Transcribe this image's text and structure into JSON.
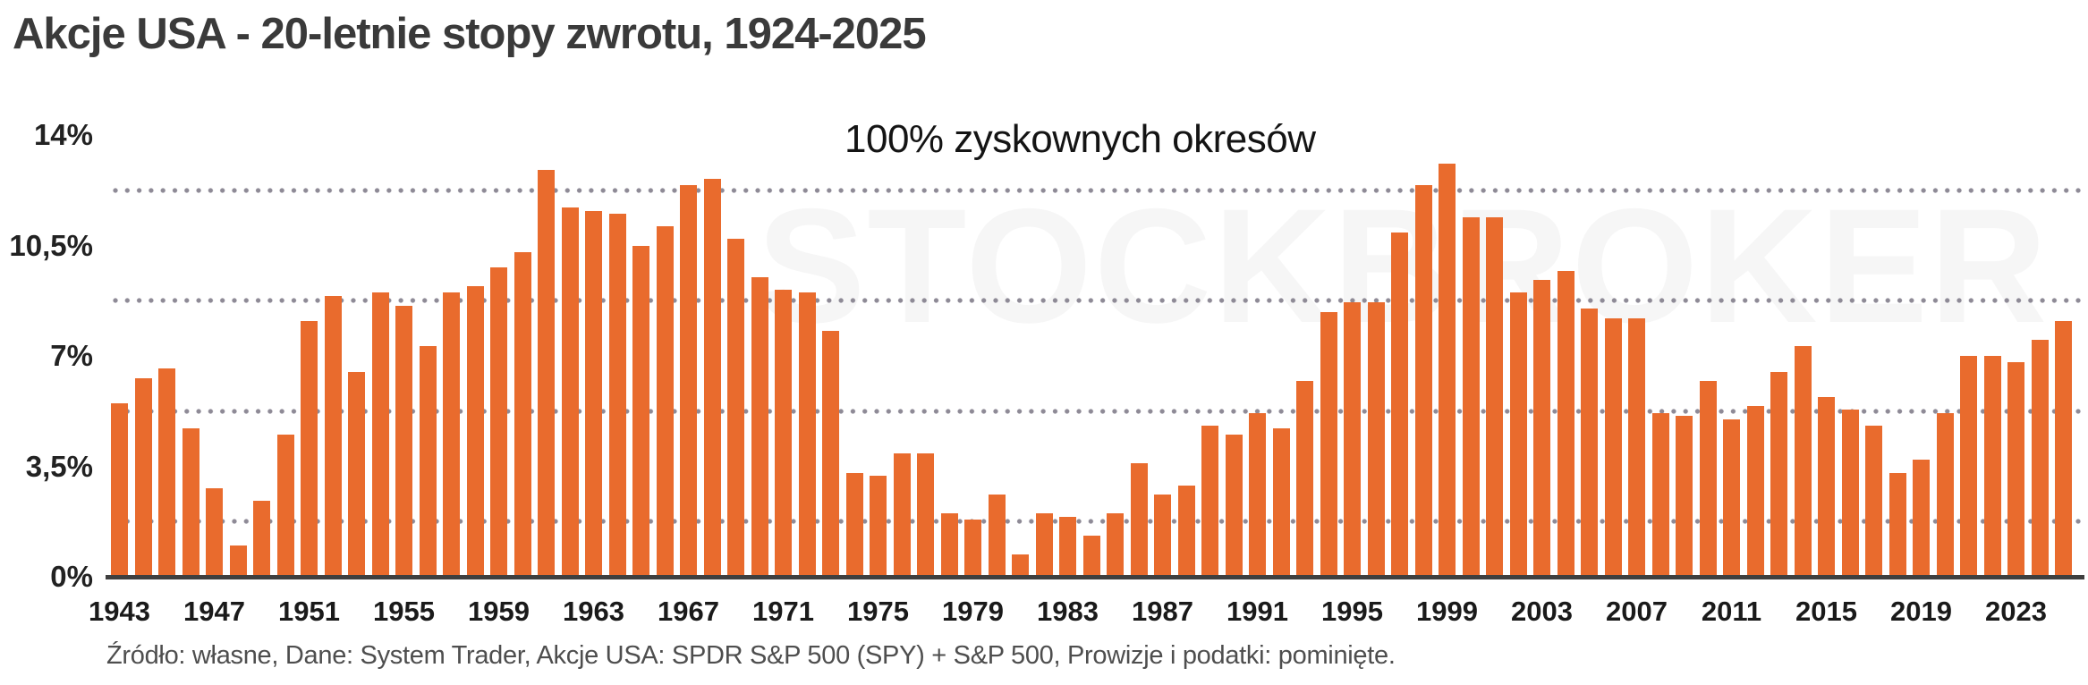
{
  "title": "Akcje USA - 20-letnie stopy zwrotu, 1924-2025",
  "annotation": "100% zyskownych okresów",
  "watermark": "STOCKBROKER",
  "source_note": "Źródło: własne, Dane: System Trader, Akcje USA: SPDR S&P 500 (SPY) + S&P 500, Prowizje i podatki: pominięte.",
  "colors": {
    "bar": "#e96b2d",
    "axis_line": "#3f3f3f",
    "gridline_dots": "#8e8a96",
    "title_text": "#3a3a3a",
    "source_text": "#4e4e4e",
    "watermark_text": "#f6f6f6",
    "background": "#ffffff"
  },
  "chart_data": {
    "type": "bar",
    "title": "Akcje USA - 20-letnie stopy zwrotu, 1924-2025",
    "xlabel": "",
    "ylabel": "",
    "ylim": [
      0,
      14
    ],
    "grid": "dotted horizontal lines at 1.75%, 5.25%, 8.75%, 12.25%",
    "legend_position": "none",
    "annotation": "100% zyskownych okresów",
    "y_ticks": [
      {
        "label": "14%",
        "value": 14
      },
      {
        "label": "10,5%",
        "value": 10.5
      },
      {
        "label": "7%",
        "value": 7
      },
      {
        "label": "3,5%",
        "value": 3.5
      },
      {
        "label": "0%",
        "value": 0
      }
    ],
    "gridline_values": [
      12.25,
      8.75,
      5.25,
      1.75
    ],
    "x_tick_years": [
      1943,
      1947,
      1951,
      1955,
      1959,
      1963,
      1967,
      1971,
      1975,
      1979,
      1983,
      1987,
      1991,
      1995,
      1999,
      2003,
      2007,
      2011,
      2015,
      2019,
      2023
    ],
    "categories": [
      1943,
      1944,
      1945,
      1946,
      1947,
      1948,
      1949,
      1950,
      1951,
      1952,
      1953,
      1954,
      1955,
      1956,
      1957,
      1958,
      1959,
      1960,
      1961,
      1962,
      1963,
      1964,
      1965,
      1966,
      1967,
      1968,
      1969,
      1970,
      1971,
      1972,
      1973,
      1974,
      1975,
      1976,
      1977,
      1978,
      1979,
      1980,
      1981,
      1982,
      1983,
      1984,
      1985,
      1986,
      1987,
      1988,
      1989,
      1990,
      1991,
      1992,
      1993,
      1994,
      1995,
      1996,
      1997,
      1998,
      1999,
      2000,
      2001,
      2002,
      2003,
      2004,
      2005,
      2006,
      2007,
      2008,
      2009,
      2010,
      2011,
      2012,
      2013,
      2014,
      2015,
      2016,
      2017,
      2018,
      2019,
      2020,
      2021,
      2022,
      2023,
      2024,
      2025
    ],
    "values": [
      5.5,
      6.3,
      6.6,
      4.7,
      2.8,
      1.0,
      2.4,
      4.5,
      8.1,
      8.9,
      6.5,
      9.0,
      8.6,
      7.3,
      9.0,
      9.2,
      9.8,
      10.3,
      12.9,
      11.7,
      11.6,
      11.5,
      10.5,
      11.1,
      12.4,
      12.6,
      10.7,
      9.5,
      9.1,
      9.0,
      7.8,
      3.3,
      3.2,
      3.9,
      3.9,
      2.0,
      1.8,
      2.6,
      0.7,
      2.0,
      1.9,
      1.3,
      2.0,
      3.6,
      2.6,
      2.9,
      4.8,
      4.5,
      5.2,
      4.7,
      6.2,
      8.4,
      8.7,
      8.7,
      10.9,
      12.4,
      13.1,
      11.4,
      11.4,
      9.0,
      9.4,
      9.7,
      8.5,
      8.2,
      8.2,
      5.2,
      5.1,
      6.2,
      5.0,
      5.4,
      6.5,
      7.3,
      5.7,
      5.3,
      4.8,
      3.3,
      3.7,
      5.2,
      7.0,
      7.0,
      6.8,
      7.5,
      8.1
    ]
  }
}
